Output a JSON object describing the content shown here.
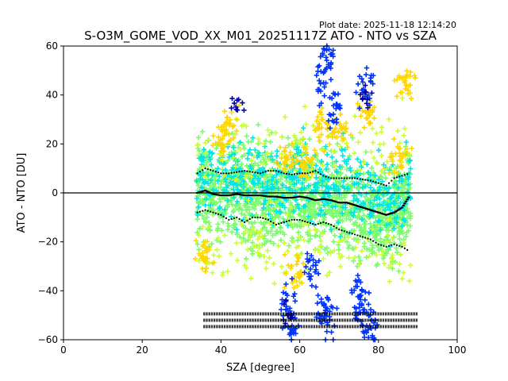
{
  "header": {
    "plot_date": "Plot date: 2025-11-18 12:14:20",
    "title": "S-O3M_GOME_VOD_XX_M01_20251117Z ATO - NTO vs SZA"
  },
  "chart_data": {
    "type": "scatter",
    "title": "S-O3M_GOME_VOD_XX_M01_20251117Z ATO - NTO vs SZA",
    "xlabel": "SZA [degree]",
    "ylabel": "ATO - NTO [DU]",
    "xlim": [
      0,
      100
    ],
    "ylim": [
      -60,
      60
    ],
    "xticks": [
      0,
      20,
      40,
      60,
      80,
      100
    ],
    "yticks": [
      -60,
      -40,
      -20,
      0,
      20,
      40,
      60
    ],
    "marker": "plus",
    "grid": false,
    "zero_line": 0,
    "colors": {
      "dense": "#7cfc6c",
      "mid": "#00e5e5",
      "yellow": "#ffd700",
      "lime": "#ccff33",
      "blue": "#0033ff",
      "navy": "#0000aa"
    },
    "series": [
      {
        "role": "median",
        "x": [
          34,
          36,
          38,
          40,
          42,
          44,
          46,
          48,
          50,
          52,
          54,
          56,
          58,
          60,
          62,
          64,
          66,
          68,
          70,
          72,
          74,
          76,
          78,
          80,
          82,
          84,
          86,
          88
        ],
        "y": [
          0,
          1,
          -0.5,
          -1,
          -1,
          -0.5,
          -1,
          -1,
          -1,
          -1.5,
          -1.5,
          -2,
          -2,
          -1.5,
          -2,
          -3,
          -2.5,
          -3,
          -4,
          -4,
          -5,
          -6,
          -7,
          -8,
          -9,
          -8,
          -6,
          -1
        ]
      },
      {
        "role": "plus-sigma",
        "x": [
          34,
          36,
          38,
          40,
          42,
          44,
          46,
          48,
          50,
          52,
          54,
          56,
          58,
          60,
          62,
          64,
          66,
          68,
          70,
          72,
          74,
          76,
          78,
          80,
          82,
          84,
          86,
          88
        ],
        "y": [
          8,
          10,
          9,
          8,
          8,
          8.5,
          9,
          8.5,
          8,
          9,
          9,
          8,
          7.5,
          8,
          8,
          9,
          7,
          6,
          6,
          6,
          6,
          5.5,
          5,
          4,
          3,
          6,
          7,
          8
        ]
      },
      {
        "role": "minus-sigma",
        "x": [
          34,
          36,
          38,
          40,
          42,
          44,
          46,
          48,
          50,
          52,
          54,
          56,
          58,
          60,
          62,
          64,
          66,
          68,
          70,
          72,
          74,
          76,
          78,
          80,
          82,
          84,
          86,
          88
        ],
        "y": [
          -8,
          -7,
          -8,
          -9,
          -11,
          -10,
          -12,
          -10,
          -10,
          -11,
          -13,
          -12,
          -11,
          -11,
          -12,
          -13,
          -12,
          -13,
          -15,
          -16,
          -17,
          -18,
          -19,
          -21,
          -22,
          -21,
          -22,
          -24
        ]
      }
    ]
  }
}
